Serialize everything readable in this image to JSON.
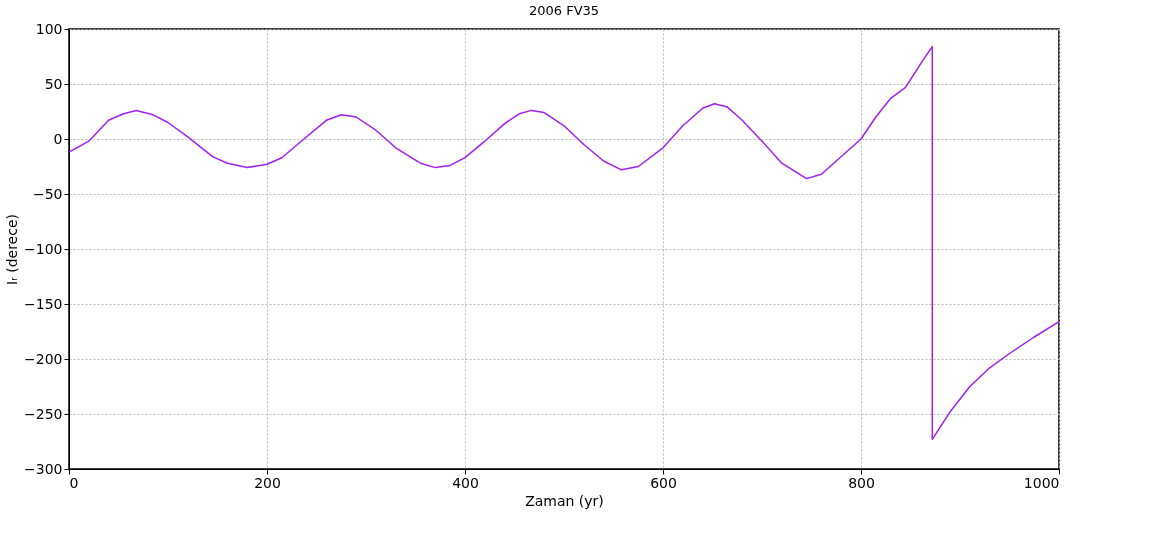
{
  "chart_data": {
    "type": "line",
    "title": "2006 FV35",
    "xlabel": "Zaman (yr)",
    "ylabel": "Iᵣ (derece)",
    "xlim": [
      0,
      1000
    ],
    "xticks": [
      0,
      200,
      400,
      600,
      800,
      1000
    ],
    "ylim": [
      -300,
      100
    ],
    "yticks": [
      -300,
      -250,
      -200,
      -150,
      -100,
      -50,
      0,
      50,
      100
    ],
    "grid": true,
    "legend": false,
    "marker": "none",
    "line_style": "solid",
    "series": [
      {
        "color": "#a020f0",
        "x": [
          0,
          20,
          40,
          55,
          68,
          85,
          100,
          120,
          145,
          160,
          180,
          200,
          215,
          240,
          260,
          275,
          290,
          310,
          330,
          355,
          370,
          385,
          400,
          420,
          440,
          455,
          467,
          480,
          500,
          520,
          540,
          558,
          575,
          600,
          620,
          640,
          652,
          665,
          680,
          700,
          720,
          745,
          760,
          775,
          800,
          815,
          830,
          845,
          860,
          872,
          872,
          890,
          910,
          930,
          950,
          975,
          1000
        ],
        "values": [
          -12,
          -2,
          17,
          23,
          26,
          22,
          15,
          2,
          -16,
          -22,
          -26,
          -23,
          -17,
          2,
          17,
          22,
          20,
          8,
          -8,
          -22,
          -26,
          -24,
          -17,
          -2,
          14,
          23,
          26,
          24,
          12,
          -5,
          -20,
          -28,
          -25,
          -8,
          12,
          28,
          32,
          29,
          17,
          -2,
          -22,
          -36,
          -32,
          -20,
          0,
          20,
          37,
          47,
          68,
          84,
          -273,
          -248,
          -225,
          -208,
          -195,
          -180,
          -166
        ]
      }
    ]
  }
}
